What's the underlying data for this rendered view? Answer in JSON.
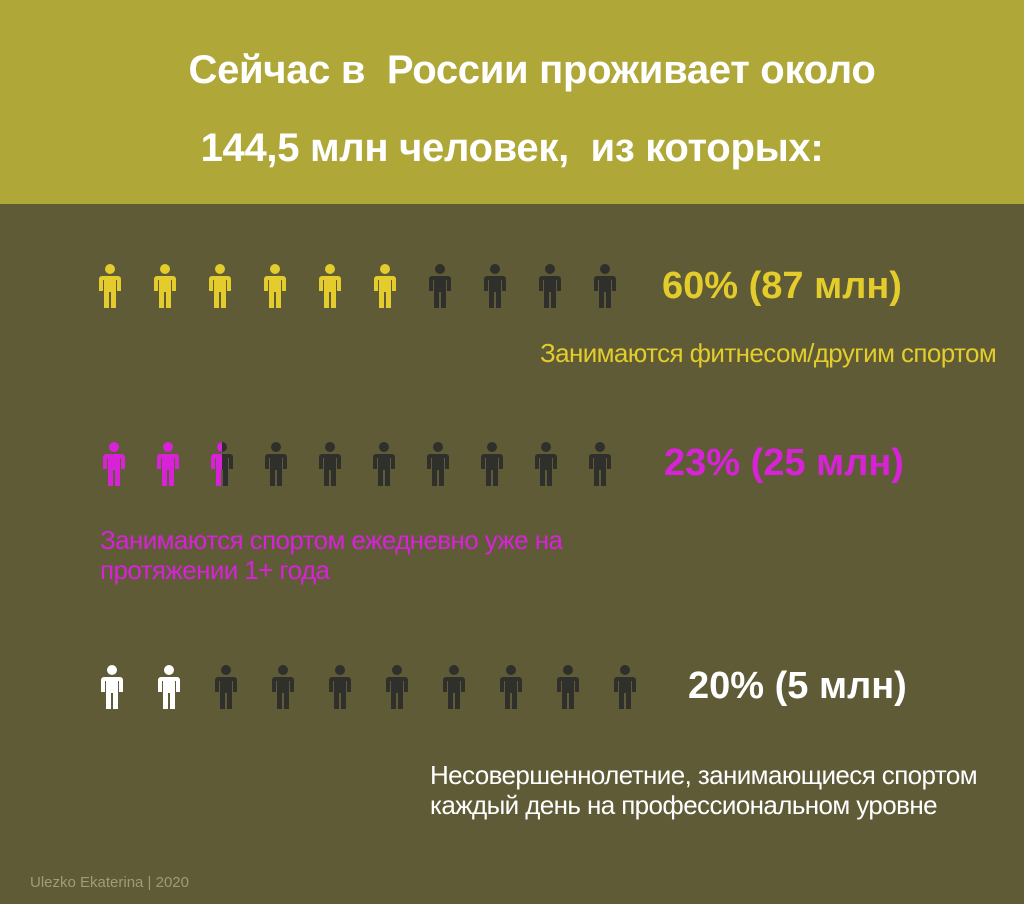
{
  "header": {
    "title_line1": "Сейчас в  России проживает около",
    "title_line2": "144,5 млн человек,  из которых:"
  },
  "colors": {
    "header_bg": "#afa839",
    "page_bg": "#5e5b36",
    "yellow": "#e3cc2b",
    "magenta": "#d822d8",
    "white": "#ffffff",
    "dark_figure": "#2f2f2b"
  },
  "icon_name": "person-icon",
  "chart_data": [
    {
      "type": "pictograph",
      "total_icons": 10,
      "filled_icons": 6,
      "percent": 60,
      "value_label": "60% (87 млн)",
      "description": "Занимаются фитнесом/другим спортом",
      "color": "#e3cc2b"
    },
    {
      "type": "pictograph",
      "total_icons": 10,
      "filled_icons": 2.5,
      "percent": 23,
      "value_label": "23% (25 млн)",
      "description_lines": [
        "Занимаются спортом ежедневно уже на",
        "протяжении 1+ года"
      ],
      "color": "#d822d8"
    },
    {
      "type": "pictograph",
      "total_icons": 10,
      "filled_icons": 2,
      "percent": 20,
      "value_label": "20% (5 млн)",
      "description_lines": [
        "Несовершеннолетние, занимающиеся спортом",
        "каждый день на профессиональном уровне"
      ],
      "color": "#ffffff"
    }
  ],
  "credit": "Ulezko Ekaterina | 2020"
}
